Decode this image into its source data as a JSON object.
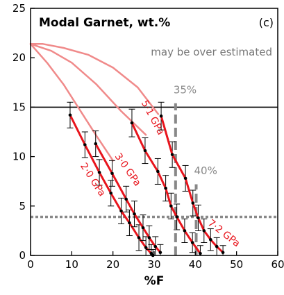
{
  "chart_data": {
    "type": "line",
    "title": "Modal Garnet, wt.%",
    "panel_label": "(c)",
    "annotation": "may be over estimated",
    "xlabel": "%F",
    "ylabel": "",
    "xlim": [
      0,
      60
    ],
    "ylim": [
      0,
      25
    ],
    "x_ticks": [
      0,
      10,
      20,
      30,
      40,
      50,
      60
    ],
    "y_ticks": [
      0,
      5,
      10,
      15,
      20,
      25
    ],
    "reference_lines": [
      {
        "orientation": "horizontal",
        "value": 15,
        "style": "solid",
        "color": "#000000"
      },
      {
        "orientation": "horizontal",
        "value": 3.9,
        "style": "dotted",
        "color": "#888888"
      },
      {
        "orientation": "vertical",
        "value": 35.2,
        "y_max": 15.4,
        "style": "dashed",
        "color": "#888888",
        "label": "35%",
        "label_y": 16.4
      },
      {
        "orientation": "vertical",
        "value": 40.2,
        "y_max": 7.2,
        "style": "dashed",
        "color": "#888888",
        "label": "40%",
        "label_y": 8.2
      }
    ],
    "colors": {
      "series": "#e8141c",
      "model": "#f08a8a",
      "error_bar": "#000000",
      "point": "#000000"
    },
    "model_curves": [
      {
        "x": [
          0,
          3,
          8,
          14,
          20,
          26,
          31
        ],
        "y": [
          21.4,
          21.4,
          21.0,
          20.3,
          19.0,
          17.0,
          14.3
        ]
      },
      {
        "x": [
          0,
          5,
          10,
          16,
          22,
          28
        ],
        "y": [
          21.4,
          20.7,
          19.5,
          17.3,
          14.6,
          12.2
        ]
      },
      {
        "x": [
          0,
          4,
          8,
          12,
          16,
          20
        ],
        "y": [
          21.4,
          19.5,
          17.3,
          14.7,
          12.1,
          9.6
        ]
      }
    ],
    "series": [
      {
        "name": "2·0 GPa",
        "label_x": 14.5,
        "label_y": 7.5,
        "label_angle": 57,
        "points": [
          {
            "x": 9.6,
            "y": 14.2,
            "err": 1.3
          },
          {
            "x": 13.2,
            "y": 11.2,
            "err": 1.3
          },
          {
            "x": 16.7,
            "y": 8.4,
            "err": 1.3
          },
          {
            "x": 19.5,
            "y": 6.3,
            "err": 1.3
          },
          {
            "x": 22.0,
            "y": 4.5,
            "err": 1.3
          },
          {
            "x": 24.0,
            "y": 3.3,
            "err": 1.3
          },
          {
            "x": 26.3,
            "y": 1.8,
            "err": 1.3
          },
          {
            "x": 28.0,
            "y": 0.8,
            "err": 1.1
          },
          {
            "x": 29.3,
            "y": 0.2,
            "err": 0.9
          },
          {
            "x": 29.7,
            "y": 0.0,
            "err": 0.6
          }
        ]
      },
      {
        "name": "3·0 GPa",
        "label_x": 23.0,
        "label_y": 8.5,
        "label_angle": 55,
        "points": [
          {
            "x": 15.8,
            "y": 11.3,
            "err": 1.3
          },
          {
            "x": 19.8,
            "y": 8.3,
            "err": 1.3
          },
          {
            "x": 23.2,
            "y": 5.7,
            "err": 1.3
          },
          {
            "x": 25.2,
            "y": 4.2,
            "err": 1.3
          },
          {
            "x": 27.3,
            "y": 2.8,
            "err": 1.3
          },
          {
            "x": 28.8,
            "y": 1.8,
            "err": 1.2
          },
          {
            "x": 30.3,
            "y": 0.9,
            "err": 1.0
          },
          {
            "x": 31.5,
            "y": 0.3,
            "err": 0.8
          }
        ]
      },
      {
        "name": "5·1 GPa",
        "label_x": 29.0,
        "label_y": 13.8,
        "label_angle": 62,
        "points": [
          {
            "x": 24.6,
            "y": 13.4,
            "err": 1.4
          },
          {
            "x": 27.8,
            "y": 10.6,
            "err": 1.3
          },
          {
            "x": 30.9,
            "y": 8.5,
            "err": 1.3
          },
          {
            "x": 32.8,
            "y": 6.8,
            "err": 1.3
          },
          {
            "x": 34.1,
            "y": 5.0,
            "err": 1.3
          },
          {
            "x": 35.5,
            "y": 3.9,
            "err": 1.3
          },
          {
            "x": 37.4,
            "y": 2.5,
            "err": 1.2
          },
          {
            "x": 39.3,
            "y": 1.3,
            "err": 1.0
          },
          {
            "x": 41.2,
            "y": 0.2,
            "err": 0.8
          }
        ]
      },
      {
        "name": "7·2 GPa",
        "label_x": 46.5,
        "label_y": 2.0,
        "label_angle": 38,
        "points": [
          {
            "x": 31.7,
            "y": 14.1,
            "err": 1.4
          },
          {
            "x": 34.4,
            "y": 10.2,
            "err": 1.3
          },
          {
            "x": 37.6,
            "y": 7.8,
            "err": 1.3
          },
          {
            "x": 39.4,
            "y": 5.3,
            "err": 1.3
          },
          {
            "x": 40.7,
            "y": 3.8,
            "err": 1.3
          },
          {
            "x": 42.1,
            "y": 2.5,
            "err": 1.2
          },
          {
            "x": 43.7,
            "y": 1.6,
            "err": 1.1
          },
          {
            "x": 45.2,
            "y": 0.9,
            "err": 0.9
          },
          {
            "x": 46.7,
            "y": 0.3,
            "err": 0.7
          }
        ]
      }
    ]
  }
}
